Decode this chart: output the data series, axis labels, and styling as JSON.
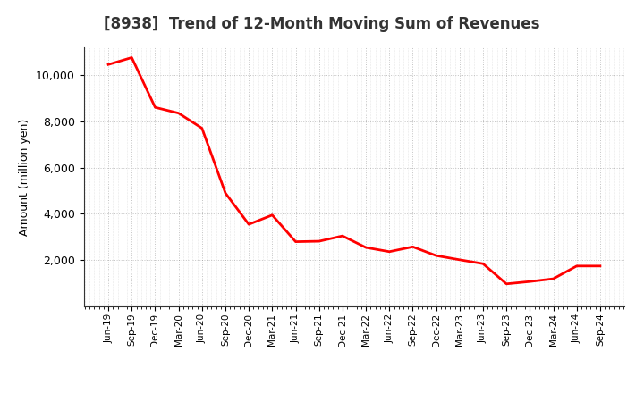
{
  "title": "[8938]  Trend of 12-Month Moving Sum of Revenues",
  "ylabel": "Amount (million yen)",
  "line_color": "#FF0000",
  "line_width": 2.0,
  "background_color": "#FFFFFF",
  "plot_bg_color": "#FFFFFF",
  "grid_color": "#888888",
  "ylim": [
    0,
    11200
  ],
  "yticks": [
    2000,
    4000,
    6000,
    8000,
    10000
  ],
  "labels": [
    "Jun-19",
    "Sep-19",
    "Dec-19",
    "Mar-20",
    "Jun-20",
    "Sep-20",
    "Dec-20",
    "Mar-21",
    "Jun-21",
    "Sep-21",
    "Dec-21",
    "Mar-22",
    "Jun-22",
    "Sep-22",
    "Dec-22",
    "Mar-23",
    "Jun-23",
    "Sep-23",
    "Dec-23",
    "Mar-24",
    "Jun-24",
    "Sep-24"
  ],
  "values": [
    10450,
    10750,
    8600,
    8350,
    7700,
    4900,
    3550,
    3950,
    2800,
    2820,
    3050,
    2550,
    2370,
    2580,
    2200,
    2020,
    1850,
    980,
    1080,
    1200,
    1750,
    1750
  ]
}
